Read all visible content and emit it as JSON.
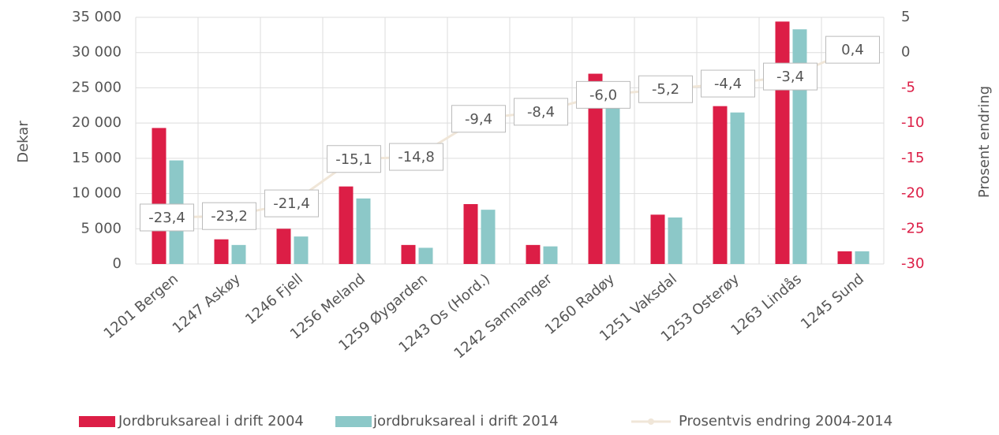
{
  "chart_data": {
    "type": "bar",
    "y_label": "Dekar",
    "y2_label": "Prosent endring",
    "categories": [
      "1201 Bergen",
      "1247 Askøy",
      "1246 Fjell",
      "1256 Meland",
      "1259 Øygarden",
      "1243 Os (Hord.)",
      "1242 Samnanger",
      "1260 Radøy",
      "1251 Vaksdal",
      "1253 Osterøy",
      "1263 Lindås",
      "1245 Sund"
    ],
    "series": [
      {
        "name": "Jordbruksareal i drift 2004",
        "color": "#dc1e46",
        "values": [
          19300,
          3500,
          5000,
          11000,
          2700,
          8500,
          2700,
          27000,
          7000,
          22400,
          34400,
          1800
        ]
      },
      {
        "name": "jordbruksareal i drift 2014",
        "color": "#8cc8c8",
        "values": [
          14700,
          2700,
          3900,
          9300,
          2300,
          7700,
          2500,
          22500,
          6600,
          21500,
          33300,
          1800
        ]
      },
      {
        "name": "Prosentvis endring 2004-2014",
        "type": "line",
        "axis": "y2",
        "color": "#f0e6d8",
        "values": [
          -23.4,
          -23.2,
          -21.4,
          -15.1,
          -14.8,
          -9.4,
          -8.4,
          -6.0,
          -5.2,
          -4.4,
          -3.4,
          0.4
        ],
        "value_labels": [
          "-23,4",
          "-23,2",
          "-21,4",
          "-15,1",
          "-14,8",
          "-9,4",
          "-8,4",
          "-6,0",
          "-5,2",
          "-4,4",
          "-3,4",
          "0,4"
        ]
      }
    ],
    "ylim": [
      0,
      35000
    ],
    "yticks": [
      0,
      {
        "value": 5000,
        "label": "5 000"
      },
      {
        "value": 10000,
        "label": "10 000"
      },
      {
        "value": 15000,
        "label": "15 000"
      },
      {
        "value": 20000,
        "label": "20 000"
      },
      {
        "value": 25000,
        "label": "25 000"
      },
      {
        "value": 30000,
        "label": "30 000"
      },
      {
        "value": 35000,
        "label": "35 000"
      }
    ],
    "y2lim": [
      -30,
      5
    ],
    "y2ticks": [
      -30,
      -25,
      -20,
      -15,
      -10,
      -5,
      0,
      5
    ],
    "negative_tick_color": "#dc1e46",
    "grid": true
  }
}
